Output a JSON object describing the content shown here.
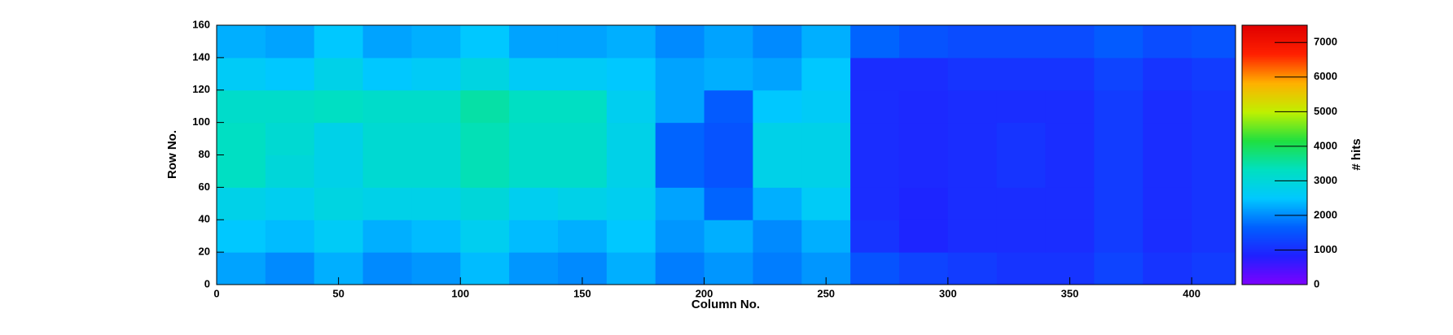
{
  "chart_data": {
    "type": "heatmap",
    "x_label": "Column No.",
    "y_label": "Row No.",
    "z_label": "# hits",
    "xbins": [
      0,
      20,
      40,
      60,
      80,
      100,
      120,
      140,
      160,
      180,
      200,
      220,
      240,
      260,
      280,
      300,
      320,
      340,
      360,
      380,
      400,
      418
    ],
    "ybins": [
      0,
      20,
      40,
      60,
      80,
      100,
      120,
      140,
      160
    ],
    "z": [
      [
        2200,
        2000,
        2300,
        2000,
        2100,
        2400,
        2100,
        2000,
        2300,
        1900,
        2100,
        1900,
        2100,
        1500,
        1300,
        1200,
        1100,
        1100,
        1300,
        1100,
        1200
      ],
      [
        2500,
        2400,
        2600,
        2300,
        2400,
        2700,
        2400,
        2300,
        2500,
        2100,
        2300,
        2000,
        2300,
        1100,
        900,
        1000,
        1000,
        1000,
        1200,
        1000,
        1100
      ],
      [
        2800,
        2700,
        2900,
        2800,
        2800,
        3000,
        2700,
        2800,
        2700,
        2200,
        1700,
        2300,
        2600,
        1000,
        900,
        1000,
        1000,
        1000,
        1200,
        1000,
        1100
      ],
      [
        3300,
        3000,
        2800,
        3100,
        3100,
        3400,
        3200,
        3200,
        2800,
        1700,
        1500,
        2800,
        2800,
        1000,
        950,
        1000,
        1100,
        1000,
        1200,
        1000,
        1100
      ],
      [
        3300,
        3100,
        2800,
        3100,
        3100,
        3400,
        3200,
        3200,
        2800,
        1700,
        1500,
        2800,
        2800,
        1000,
        950,
        1000,
        1100,
        1000,
        1200,
        1000,
        1100
      ],
      [
        3200,
        3200,
        3300,
        3200,
        3200,
        3500,
        3300,
        3300,
        2700,
        2200,
        1600,
        2500,
        2600,
        1000,
        950,
        1000,
        1000,
        1000,
        1200,
        1000,
        1100
      ],
      [
        2600,
        2500,
        2800,
        2500,
        2600,
        2900,
        2600,
        2600,
        2500,
        2200,
        2300,
        2200,
        2500,
        1000,
        1000,
        1100,
        1100,
        1100,
        1300,
        1100,
        1200
      ],
      [
        2300,
        2200,
        2500,
        2200,
        2300,
        2500,
        2200,
        2200,
        2300,
        2000,
        2200,
        2000,
        2300,
        1700,
        1500,
        1400,
        1400,
        1400,
        1600,
        1400,
        1500
      ]
    ],
    "xlim": [
      0,
      418
    ],
    "xticks": [
      0,
      50,
      100,
      150,
      200,
      250,
      300,
      350,
      400
    ],
    "ylim": [
      0,
      160
    ],
    "yticks": [
      0,
      20,
      40,
      60,
      80,
      100,
      120,
      140,
      160
    ],
    "zlim": [
      0,
      7500
    ],
    "zticks": [
      0,
      1000,
      2000,
      3000,
      4000,
      5000,
      6000,
      7000
    ],
    "colorscale": [
      "#7f00ff",
      "#2020ff",
      "#0060ff",
      "#00c8ff",
      "#00e0c0",
      "#20e040",
      "#c0f000",
      "#ffb000",
      "#ff2000",
      "#e00000"
    ]
  }
}
